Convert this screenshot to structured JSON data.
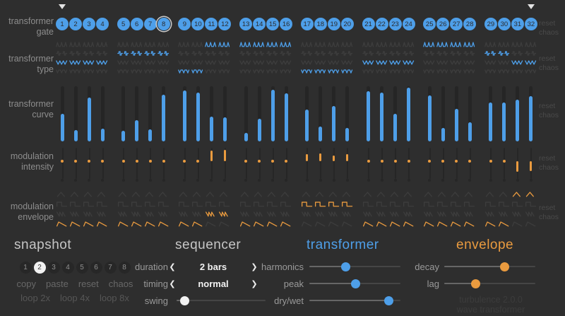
{
  "app": {
    "title_lines": [
      "turbulence 2.0.0",
      "wave transformer"
    ]
  },
  "colors": {
    "background": "#2e2e2e",
    "accent_blue": "#4e9fe9",
    "accent_orange": "#ea9b3f"
  },
  "icons": {
    "prev": "❮",
    "next": "❯",
    "loop_marker": "triangle-down"
  },
  "side_sections": [
    {
      "key": "gate",
      "label_lines": [
        "transformer",
        "gate"
      ],
      "reset": "reset",
      "chaos": "chaos"
    },
    {
      "key": "type",
      "label_lines": [
        "transformer",
        "type"
      ],
      "reset": "reset",
      "chaos": "chaos"
    },
    {
      "key": "curve",
      "label_lines": [
        "transformer",
        "curve"
      ],
      "reset": "reset",
      "chaos": "chaos"
    },
    {
      "key": "intensity",
      "label_lines": [
        "modulation",
        "intensity"
      ],
      "reset": "reset",
      "chaos": "chaos"
    },
    {
      "key": "envelope",
      "label_lines": [
        "modulation",
        "envelope"
      ],
      "reset": "reset",
      "chaos": "chaos"
    }
  ],
  "grid": {
    "step_count": 32,
    "group_size": 4,
    "gate": {
      "numbers": [
        1,
        2,
        3,
        4,
        5,
        6,
        7,
        8,
        9,
        10,
        11,
        12,
        13,
        14,
        15,
        16,
        17,
        18,
        19,
        20,
        21,
        22,
        23,
        24,
        25,
        26,
        27,
        28,
        29,
        30,
        31,
        32
      ],
      "all_on": true,
      "current_step": 8,
      "loop_start_step": 1,
      "loop_end_step": 32
    },
    "type": {
      "row_icons": [
        "spikes-wave",
        "pulse-wave",
        "zigzag-wave",
        "valley-wave"
      ],
      "selected_row": [
        3,
        3,
        3,
        3,
        2,
        2,
        2,
        2,
        4,
        4,
        1,
        1,
        1,
        1,
        1,
        1,
        4,
        4,
        4,
        4,
        3,
        3,
        3,
        3,
        1,
        1,
        1,
        1,
        2,
        2,
        3,
        3
      ]
    },
    "curve": {
      "values": [
        0.5,
        0.2,
        0.8,
        0.23,
        0.19,
        0.38,
        0.22,
        0.84,
        0.92,
        0.88,
        0.45,
        0.44,
        0.16,
        0.41,
        0.94,
        0.87,
        0.58,
        0.27,
        0.64,
        0.24,
        0.91,
        0.88,
        0.5,
        0.97,
        0.83,
        0.25,
        0.59,
        0.35,
        0.71,
        0.71,
        0.76,
        0.82
      ]
    },
    "intensity": {
      "values": [
        0,
        0,
        0,
        0,
        0,
        0,
        0,
        0,
        0,
        0,
        0.9,
        0.95,
        0,
        0,
        0,
        0,
        0.6,
        0.65,
        0.5,
        0.6,
        0,
        0,
        0,
        0,
        0,
        0,
        0,
        0,
        0,
        0,
        -0.9,
        -0.85
      ]
    },
    "envelope": {
      "row_icons": [
        "triangle-env",
        "square-env",
        "ramps-env",
        "saw-env"
      ],
      "selected_row": [
        4,
        4,
        4,
        4,
        4,
        4,
        4,
        4,
        4,
        4,
        3,
        3,
        4,
        4,
        4,
        4,
        2,
        2,
        2,
        2,
        4,
        4,
        4,
        4,
        4,
        4,
        4,
        4,
        4,
        4,
        1,
        1
      ]
    }
  },
  "panels": {
    "snapshot": {
      "title": "snapshot",
      "slots": [
        1,
        2,
        3,
        4,
        5,
        6,
        7,
        8
      ],
      "active_slot": 2,
      "actions": [
        "copy",
        "paste",
        "reset",
        "chaos"
      ],
      "loop_actions": [
        "loop 2x",
        "loop 4x",
        "loop 8x"
      ]
    },
    "sequencer": {
      "title": "sequencer",
      "duration_label": "duration",
      "duration_value": "2 bars",
      "timing_label": "timing",
      "timing_value": "normal",
      "swing_label": "swing",
      "swing_value": 0.04
    },
    "transformer": {
      "title": "transformer",
      "sliders": [
        {
          "label": "harmonics",
          "value": 0.39
        },
        {
          "label": "peak",
          "value": 0.51
        },
        {
          "label": "dry/wet",
          "value": 0.91
        }
      ]
    },
    "envelope": {
      "title": "envelope",
      "sliders": [
        {
          "label": "decay",
          "value": 0.68
        },
        {
          "label": "lag",
          "value": 0.33
        }
      ]
    }
  }
}
